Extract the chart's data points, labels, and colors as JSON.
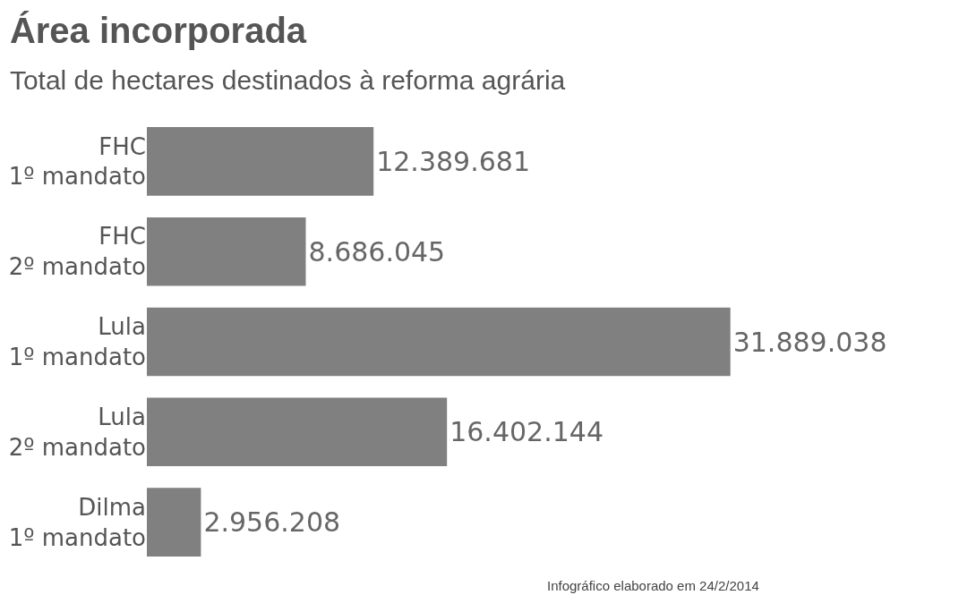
{
  "chart_data": {
    "type": "bar",
    "orientation": "horizontal",
    "title": "Área incorporada",
    "subtitle": "Total de hectares destinados à reforma agrária",
    "categories": [
      "FHC\n1º mandato",
      "FHC\n2º mandato",
      "Lula\n1º mandato",
      "Lula\n2º mandato",
      "Dilma\n1º mandato"
    ],
    "values": [
      12389681,
      8686045,
      31889038,
      16402144,
      2956208
    ],
    "value_labels": [
      "12.389.681",
      "8.686.045",
      "31.889.038",
      "16.402.144",
      "2.956.208"
    ],
    "color": "#808080",
    "tick_labels": "y",
    "annotations": [
      "Infográfico elaborado em 24/2/2014"
    ]
  }
}
